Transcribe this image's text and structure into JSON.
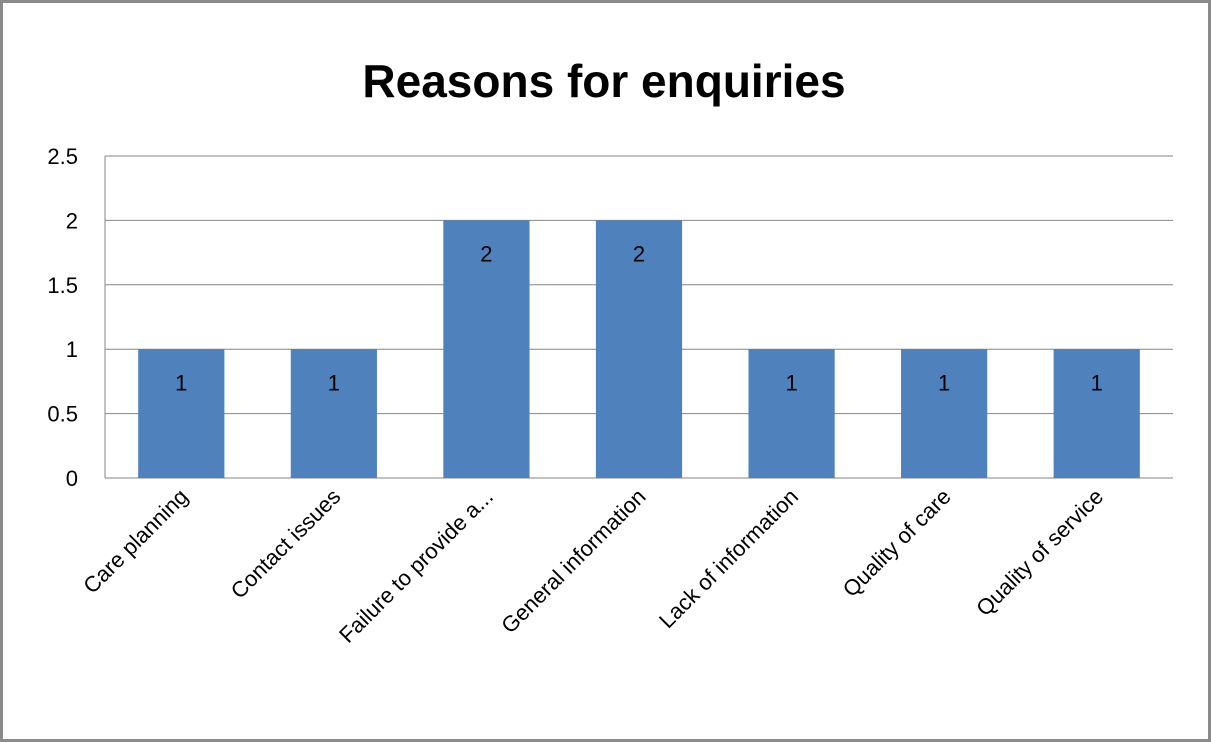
{
  "chart_data": {
    "type": "bar",
    "title": "Reasons for enquiries",
    "xlabel": "",
    "ylabel": "",
    "categories": [
      "Care planning",
      "Contact issues",
      "Failure to provide a...",
      "General information",
      "Lack of information",
      "Quality of care",
      "Quality of service"
    ],
    "values": [
      1,
      1,
      2,
      2,
      1,
      1,
      1
    ],
    "data_labels": [
      "1",
      "1",
      "2",
      "2",
      "1",
      "1",
      "1"
    ],
    "y_ticks": [
      "0",
      "0.5",
      "1",
      "1.5",
      "2",
      "2.5"
    ],
    "ylim": [
      0,
      2.5
    ],
    "grid": true,
    "legend": "none",
    "bar_color": "#4f81bd",
    "grid_color": "#868686"
  }
}
